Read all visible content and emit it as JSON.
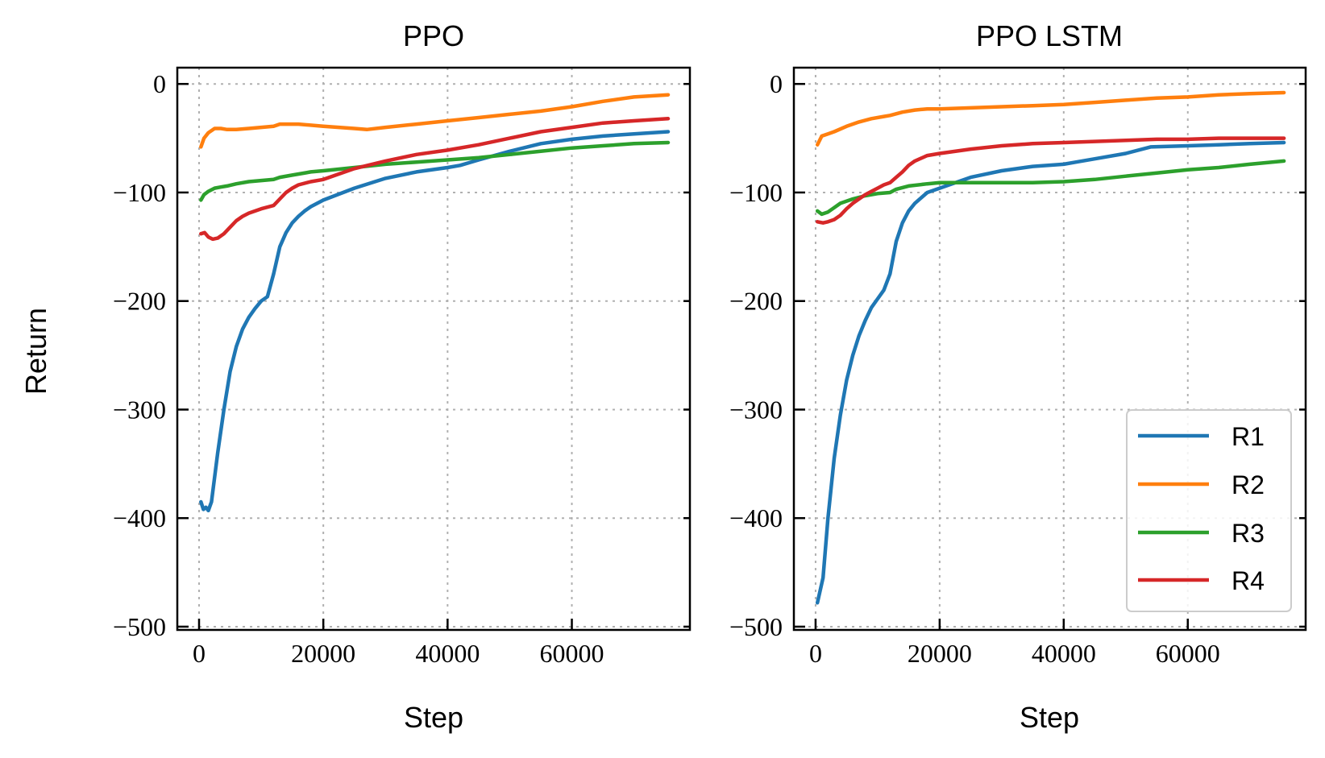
{
  "figure": {
    "ylabel": "Return",
    "xlabel": "Step"
  },
  "colors": {
    "R1": "#1f77b4",
    "R2": "#ff7f0e",
    "R3": "#2ca02c",
    "R4": "#d62728"
  },
  "legend": {
    "placement": "lower-right of second panel",
    "entries": [
      "R1",
      "R2",
      "R3",
      "R4"
    ]
  },
  "chart_data": [
    {
      "type": "line",
      "title": "PPO",
      "xlabel": "Step",
      "ylabel": "Return",
      "xlim": [
        -3500,
        79000
      ],
      "ylim": [
        -503,
        15
      ],
      "xticks": [
        0,
        20000,
        40000,
        60000
      ],
      "xtick_labels": [
        "0",
        "20000",
        "40000",
        "60000"
      ],
      "yticks": [
        0,
        -100,
        -200,
        -300,
        -400,
        -500
      ],
      "ytick_labels": [
        "0",
        "−100",
        "−200",
        "−300",
        "−400",
        "−500"
      ],
      "grid": true,
      "series": [
        {
          "name": "R1",
          "x": [
            300,
            700,
            1100,
            1500,
            2000,
            3000,
            4000,
            5000,
            6000,
            7000,
            8000,
            9000,
            10000,
            11000,
            12000,
            13000,
            14000,
            15000,
            16000,
            17000,
            18000,
            20000,
            25000,
            30000,
            35000,
            40000,
            42000,
            45000,
            50000,
            55000,
            60000,
            65000,
            70000,
            75500
          ],
          "y": [
            -385,
            -392,
            -390,
            -393,
            -385,
            -340,
            -300,
            -265,
            -242,
            -226,
            -215,
            -207,
            -200,
            -196,
            -175,
            -150,
            -137,
            -128,
            -122,
            -117,
            -113,
            -107,
            -96,
            -87,
            -81,
            -77,
            -75,
            -70,
            -62,
            -55,
            -51,
            -48,
            -46,
            -44
          ]
        },
        {
          "name": "R2",
          "x": [
            300,
            800,
            1500,
            2500,
            3500,
            4500,
            6000,
            8000,
            10000,
            12000,
            13000,
            14000,
            16000,
            20000,
            25000,
            27000,
            30000,
            35000,
            40000,
            45000,
            50000,
            55000,
            60000,
            65000,
            70000,
            75500
          ],
          "y": [
            -58,
            -50,
            -45,
            -41,
            -41,
            -42,
            -42,
            -41,
            -40,
            -39,
            -37,
            -37,
            -37,
            -39,
            -41,
            -42,
            -40,
            -37,
            -34,
            -31,
            -28,
            -25,
            -21,
            -16,
            -12,
            -10
          ]
        },
        {
          "name": "R3",
          "x": [
            300,
            800,
            1500,
            2500,
            3500,
            4500,
            6000,
            8000,
            10000,
            12000,
            13000,
            15000,
            18000,
            20000,
            25000,
            30000,
            35000,
            40000,
            45000,
            50000,
            55000,
            60000,
            65000,
            70000,
            75500
          ],
          "y": [
            -107,
            -102,
            -99,
            -96,
            -95,
            -94,
            -92,
            -90,
            -89,
            -88,
            -86,
            -84,
            -81,
            -80,
            -77,
            -74,
            -72,
            -70,
            -68,
            -65,
            -62,
            -59,
            -57,
            -55,
            -54
          ]
        },
        {
          "name": "R4",
          "x": [
            300,
            900,
            1500,
            2200,
            3000,
            4000,
            5000,
            6000,
            7000,
            8000,
            10000,
            12000,
            13000,
            14000,
            15000,
            16000,
            18000,
            20000,
            25000,
            30000,
            35000,
            40000,
            45000,
            50000,
            55000,
            60000,
            65000,
            70000,
            75500
          ],
          "y": [
            -138,
            -137,
            -141,
            -143,
            -142,
            -138,
            -132,
            -126,
            -122,
            -119,
            -115,
            -112,
            -106,
            -100,
            -96,
            -93,
            -90,
            -88,
            -78,
            -71,
            -65,
            -61,
            -56,
            -50,
            -44,
            -40,
            -36,
            -34,
            -32
          ]
        }
      ]
    },
    {
      "type": "line",
      "title": "PPO LSTM",
      "xlabel": "Step",
      "ylabel": "",
      "xlim": [
        -3500,
        79000
      ],
      "ylim": [
        -503,
        15
      ],
      "xticks": [
        0,
        20000,
        40000,
        60000
      ],
      "xtick_labels": [
        "0",
        "20000",
        "40000",
        "60000"
      ],
      "yticks": [
        0,
        -100,
        -200,
        -300,
        -400,
        -500
      ],
      "ytick_labels": [
        "0",
        "−100",
        "−200",
        "−300",
        "−400",
        "−500"
      ],
      "grid": true,
      "series": [
        {
          "name": "R1",
          "x": [
            300,
            1200,
            2000,
            3000,
            4000,
            5000,
            6000,
            7000,
            8000,
            9000,
            10000,
            11000,
            12000,
            13000,
            14000,
            15000,
            16000,
            18000,
            20000,
            25000,
            30000,
            35000,
            40000,
            42000,
            45000,
            50000,
            54000,
            60000,
            65000,
            70000,
            75500
          ],
          "y": [
            -478,
            -455,
            -400,
            -345,
            -305,
            -273,
            -250,
            -232,
            -218,
            -206,
            -198,
            -190,
            -175,
            -145,
            -128,
            -117,
            -110,
            -100,
            -96,
            -86,
            -80,
            -76,
            -74,
            -72,
            -69,
            -64,
            -58,
            -57,
            -56,
            -55,
            -54
          ]
        },
        {
          "name": "R2",
          "x": [
            300,
            1000,
            2000,
            3000,
            5000,
            7000,
            9000,
            11000,
            12000,
            14000,
            16000,
            18000,
            20000,
            25000,
            30000,
            35000,
            40000,
            45000,
            50000,
            55000,
            60000,
            65000,
            70000,
            75500
          ],
          "y": [
            -56,
            -48,
            -46,
            -44,
            -39,
            -35,
            -32,
            -30,
            -29,
            -26,
            -24,
            -23,
            -23,
            -22,
            -21,
            -20,
            -19,
            -17,
            -15,
            -13,
            -12,
            -10,
            -9,
            -8
          ]
        },
        {
          "name": "R3",
          "x": [
            300,
            1000,
            2000,
            3000,
            4000,
            6000,
            8000,
            10000,
            12000,
            13000,
            15000,
            18000,
            20000,
            25000,
            30000,
            35000,
            40000,
            45000,
            50000,
            55000,
            60000,
            65000,
            70000,
            75500
          ],
          "y": [
            -117,
            -120,
            -118,
            -114,
            -110,
            -106,
            -103,
            -101,
            -100,
            -97,
            -94,
            -92,
            -91,
            -91,
            -91,
            -91,
            -90,
            -88,
            -85,
            -82,
            -79,
            -77,
            -74,
            -71
          ]
        },
        {
          "name": "R4",
          "x": [
            300,
            1200,
            2000,
            3000,
            4000,
            5000,
            6000,
            7000,
            8000,
            9000,
            10000,
            11000,
            12000,
            13000,
            14000,
            15000,
            16000,
            18000,
            20000,
            25000,
            30000,
            35000,
            40000,
            45000,
            50000,
            55000,
            60000,
            65000,
            70000,
            75500
          ],
          "y": [
            -127,
            -128,
            -127,
            -125,
            -121,
            -115,
            -110,
            -106,
            -102,
            -99,
            -96,
            -93,
            -91,
            -86,
            -81,
            -75,
            -71,
            -66,
            -64,
            -60,
            -57,
            -55,
            -54,
            -53,
            -52,
            -51,
            -51,
            -50,
            -50,
            -50
          ]
        }
      ]
    }
  ]
}
